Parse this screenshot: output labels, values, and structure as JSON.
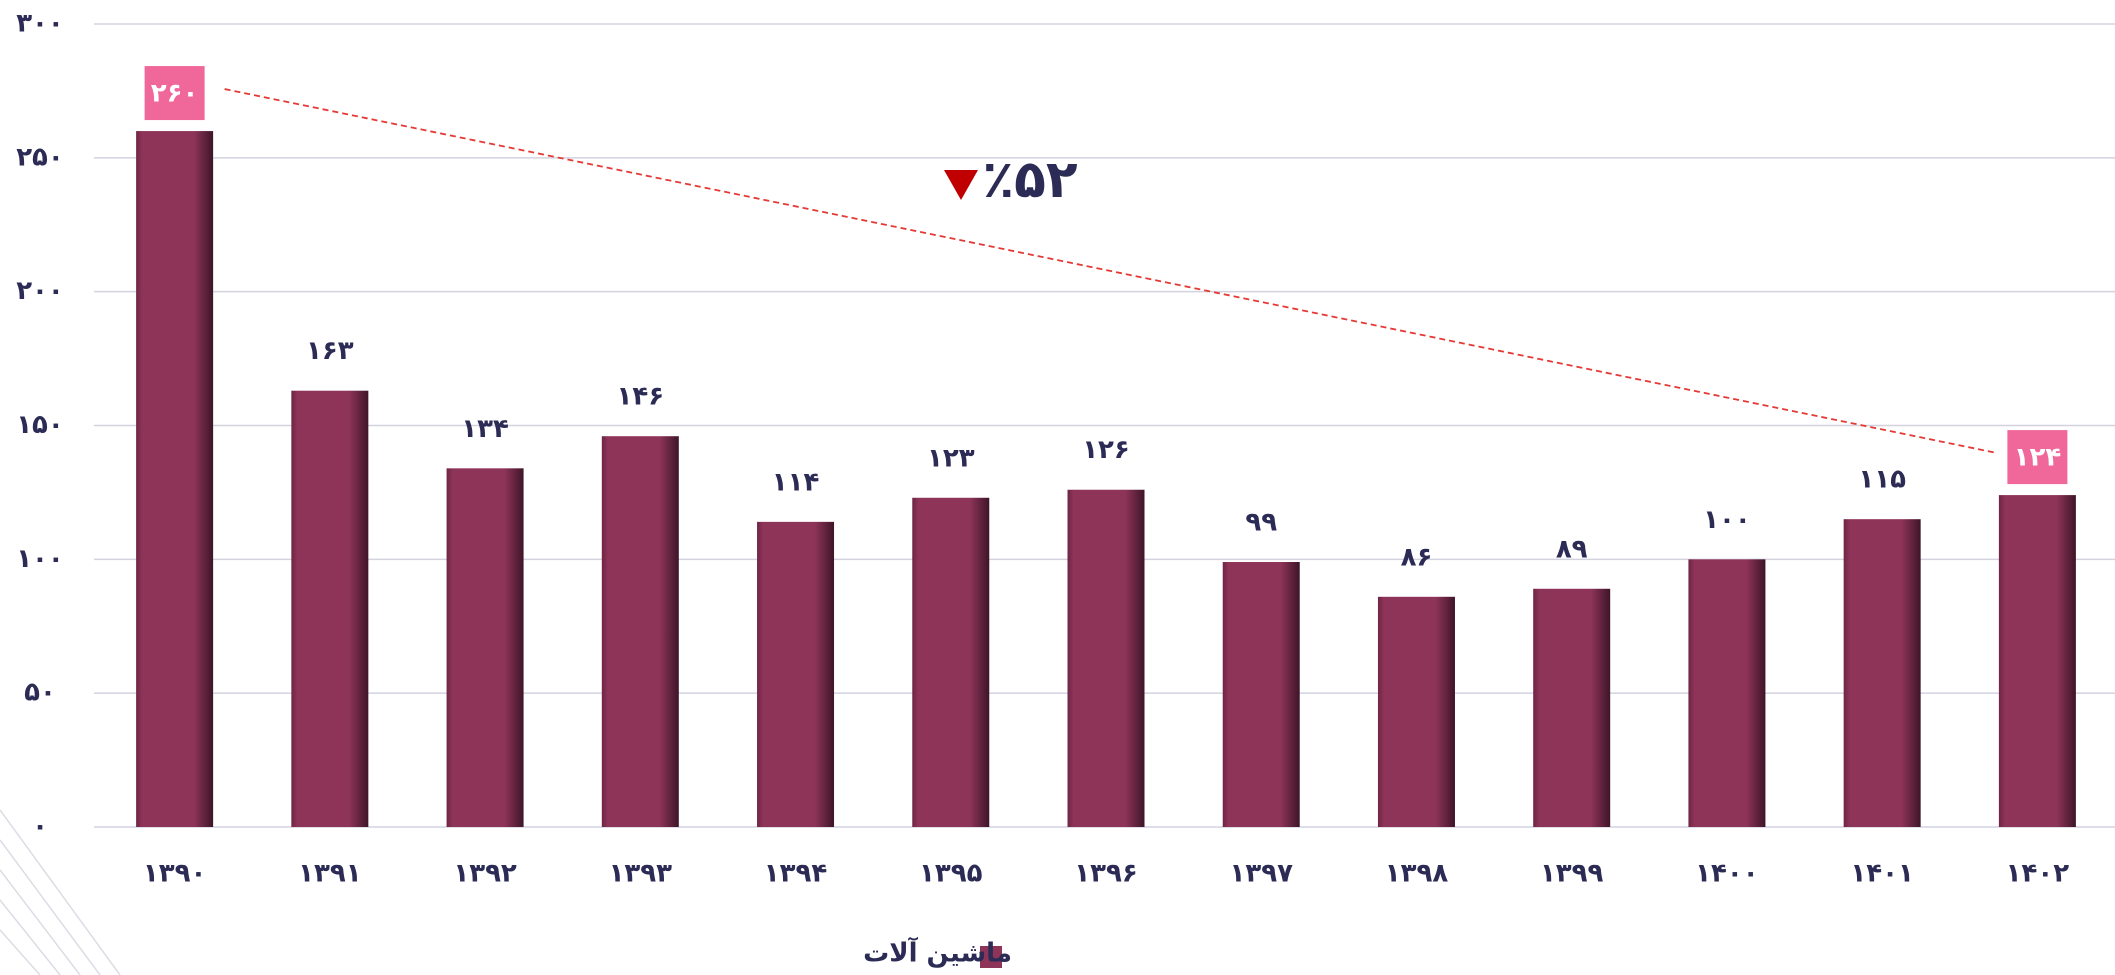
{
  "chart_data": {
    "type": "bar",
    "categories": [
      "۱۳۹۰",
      "۱۳۹۱",
      "۱۳۹۲",
      "۱۳۹۳",
      "۱۳۹۴",
      "۱۳۹۵",
      "۱۳۹۶",
      "۱۳۹۷",
      "۱۳۹۸",
      "۱۳۹۹",
      "۱۴۰۰",
      "۱۴۰۱",
      "۱۴۰۲"
    ],
    "series": [
      {
        "name": "ماشین آلات",
        "color": "#8e3459",
        "values": [
          260,
          163,
          134,
          146,
          114,
          123,
          126,
          99,
          86,
          89,
          100,
          115,
          124
        ],
        "value_labels": [
          "۲۶۰",
          "۱۶۳",
          "۱۳۴",
          "۱۴۶",
          "۱۱۴",
          "۱۲۳",
          "۱۲۶",
          "۹۹",
          "۸۶",
          "۸۹",
          "۱۰۰",
          "۱۱۵",
          "۱۲۴"
        ]
      }
    ],
    "ylim": [
      0,
      300
    ],
    "yticks": [
      {
        "value": 0,
        "label": "۰"
      },
      {
        "value": 50,
        "label": "۵۰"
      },
      {
        "value": 100,
        "label": "۱۰۰"
      },
      {
        "value": 150,
        "label": "۱۵۰"
      },
      {
        "value": 200,
        "label": "۲۰۰"
      },
      {
        "value": 250,
        "label": "۲۵۰"
      },
      {
        "value": 300,
        "label": "۳۰۰"
      }
    ],
    "grid": true,
    "annotation": "٪۵۲"
  }
}
